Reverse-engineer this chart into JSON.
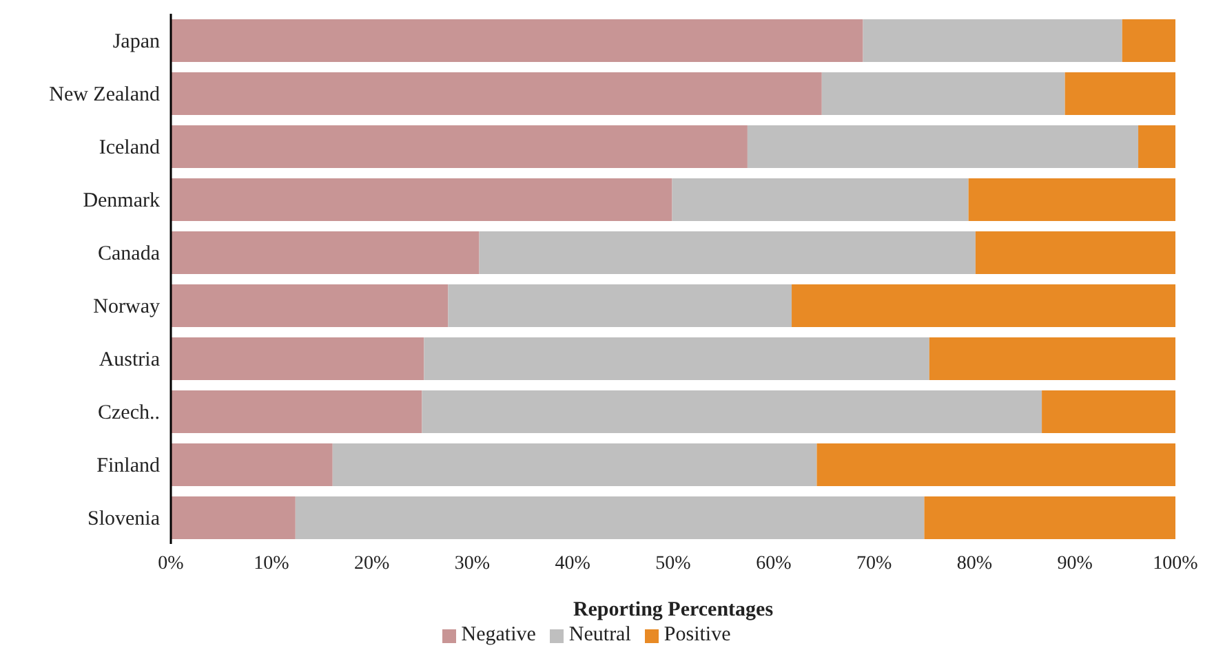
{
  "chart_data": {
    "type": "bar",
    "orientation": "horizontal",
    "stacked": true,
    "xlabel": "Reporting Percentages",
    "categories": [
      "Japan",
      "New Zealand",
      "Iceland",
      "Denmark",
      "Canada",
      "Norway",
      "Austria",
      "Czech..",
      "Finland",
      "Slovenia"
    ],
    "series": [
      {
        "name": "Negative",
        "color": "#c89595",
        "values": [
          68.9,
          64.8,
          57.4,
          49.9,
          30.7,
          27.6,
          25.2,
          25.0,
          16.1,
          12.4
        ]
      },
      {
        "name": "Neutral",
        "color": "#bfbfbf",
        "values": [
          25.8,
          24.2,
          38.9,
          29.5,
          49.4,
          34.2,
          50.3,
          61.7,
          48.2,
          62.6
        ]
      },
      {
        "name": "Positive",
        "color": "#e88a25",
        "values": [
          5.3,
          11.0,
          3.7,
          20.6,
          19.9,
          38.2,
          24.5,
          13.3,
          35.7,
          25.0
        ]
      }
    ],
    "xlim": [
      0,
      100
    ],
    "xticks": [
      {
        "value": 0,
        "label": "0%"
      },
      {
        "value": 10,
        "label": "10%"
      },
      {
        "value": 20,
        "label": "20%"
      },
      {
        "value": 30,
        "label": "30%"
      },
      {
        "value": 40,
        "label": "40%"
      },
      {
        "value": 50,
        "label": "50%"
      },
      {
        "value": 60,
        "label": "60%"
      },
      {
        "value": 70,
        "label": "70%"
      },
      {
        "value": 80,
        "label": "80%"
      },
      {
        "value": 90,
        "label": "90%"
      },
      {
        "value": 100,
        "label": "100%"
      }
    ],
    "grid": false,
    "legend": "bottom"
  }
}
